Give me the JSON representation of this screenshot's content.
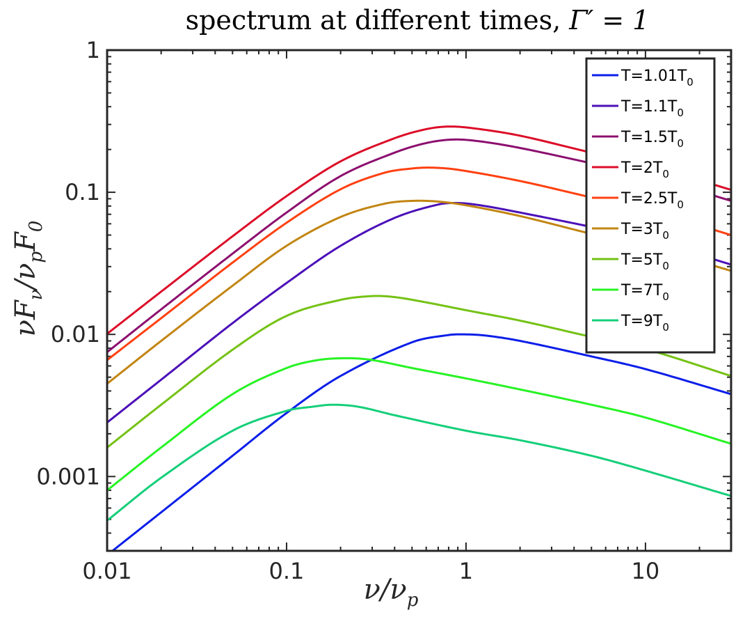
{
  "chart_data": {
    "type": "line",
    "title": "spectrum at different times, Γ′ = 1",
    "title_main": "spectrum at different times,",
    "title_math": "Γ′ = 1",
    "xlabel": "ν/ν",
    "xlabel_sub": "p",
    "ylabel": "νF",
    "ylabel_sub1": "ν",
    "ylabel_mid": "/ν",
    "ylabel_sub2": "p",
    "ylabel_end": "F",
    "ylabel_sub3": "0",
    "xscale": "log",
    "yscale": "log",
    "xlim": [
      0.01,
      30
    ],
    "ylim": [
      0.0003,
      1
    ],
    "x_ticks": [
      {
        "value": 0.01,
        "label": "0.01"
      },
      {
        "value": 0.1,
        "label": "0.1"
      },
      {
        "value": 1,
        "label": "1"
      },
      {
        "value": 10,
        "label": "10"
      }
    ],
    "y_ticks": [
      {
        "value": 0.001,
        "label": "0.001"
      },
      {
        "value": 0.01,
        "label": "0.01"
      },
      {
        "value": 0.1,
        "label": "0.1"
      },
      {
        "value": 1,
        "label": "1"
      }
    ],
    "legend_position": "top-right",
    "series": [
      {
        "name": "T=1.01T0",
        "label_main": "T=1.01T",
        "label_sub": "0",
        "color": "#0b1ee8",
        "x": [
          0.01,
          0.02,
          0.05,
          0.1,
          0.2,
          0.5,
          0.8,
          1,
          1.3,
          2,
          5,
          10,
          30
        ],
        "y": [
          0.00028,
          0.00056,
          0.0014,
          0.0028,
          0.0051,
          0.0088,
          0.0099,
          0.01,
          0.0098,
          0.009,
          0.007,
          0.0057,
          0.0038
        ]
      },
      {
        "name": "T=1.1T0",
        "label_main": "T=1.1T",
        "label_sub": "0",
        "color": "#4b10b8",
        "x": [
          0.01,
          0.02,
          0.05,
          0.1,
          0.2,
          0.4,
          0.7,
          0.9,
          1.2,
          2,
          5,
          10,
          30
        ],
        "y": [
          0.0024,
          0.0048,
          0.012,
          0.023,
          0.042,
          0.066,
          0.082,
          0.084,
          0.081,
          0.072,
          0.057,
          0.047,
          0.031
        ]
      },
      {
        "name": "T=1.5T0",
        "label_main": "T=1.5T",
        "label_sub": "0",
        "color": "#8c0f6f",
        "x": [
          0.01,
          0.02,
          0.05,
          0.1,
          0.2,
          0.4,
          0.6,
          0.85,
          1.2,
          2,
          5,
          10,
          30
        ],
        "y": [
          0.0075,
          0.015,
          0.037,
          0.072,
          0.13,
          0.19,
          0.222,
          0.235,
          0.228,
          0.205,
          0.16,
          0.132,
          0.087
        ]
      },
      {
        "name": "T=2T0",
        "label_main": "T=2T",
        "label_sub": "0",
        "color": "#dc0d28",
        "x": [
          0.01,
          0.02,
          0.05,
          0.1,
          0.2,
          0.4,
          0.6,
          0.8,
          1.1,
          2,
          5,
          10,
          30
        ],
        "y": [
          0.0101,
          0.02,
          0.049,
          0.094,
          0.165,
          0.24,
          0.278,
          0.29,
          0.282,
          0.25,
          0.19,
          0.157,
          0.104
        ]
      },
      {
        "name": "T=2.5T0",
        "label_main": "T=2.5T",
        "label_sub": "0",
        "color": "#ff4010",
        "x": [
          0.01,
          0.02,
          0.05,
          0.1,
          0.2,
          0.35,
          0.5,
          0.65,
          0.9,
          2,
          5,
          10,
          30
        ],
        "y": [
          0.0066,
          0.013,
          0.032,
          0.061,
          0.105,
          0.137,
          0.147,
          0.149,
          0.144,
          0.12,
          0.092,
          0.076,
          0.05
        ]
      },
      {
        "name": "T=3T0",
        "label_main": "T=3T",
        "label_sub": "0",
        "color": "#c28512",
        "x": [
          0.01,
          0.02,
          0.05,
          0.1,
          0.2,
          0.35,
          0.5,
          0.7,
          1,
          2,
          5,
          10,
          30
        ],
        "y": [
          0.0045,
          0.009,
          0.022,
          0.042,
          0.067,
          0.083,
          0.087,
          0.086,
          0.081,
          0.068,
          0.051,
          0.042,
          0.028
        ]
      },
      {
        "name": "T=5T0",
        "label_main": "T=5T",
        "label_sub": "0",
        "color": "#74c214",
        "x": [
          0.01,
          0.02,
          0.05,
          0.1,
          0.2,
          0.3,
          0.4,
          0.6,
          1,
          2,
          5,
          10,
          30
        ],
        "y": [
          0.0016,
          0.0032,
          0.0078,
          0.0135,
          0.0175,
          0.0186,
          0.0183,
          0.0168,
          0.0148,
          0.0125,
          0.0096,
          0.0079,
          0.0051
        ]
      },
      {
        "name": "T=7T0",
        "label_main": "T=7T",
        "label_sub": "0",
        "color": "#27f324",
        "x": [
          0.01,
          0.02,
          0.05,
          0.1,
          0.15,
          0.22,
          0.3,
          0.5,
          1,
          2,
          5,
          10,
          30
        ],
        "y": [
          0.0008,
          0.0016,
          0.0038,
          0.0058,
          0.0066,
          0.0068,
          0.0066,
          0.0058,
          0.0049,
          0.0041,
          0.0032,
          0.0026,
          0.0017
        ]
      },
      {
        "name": "T=9T0",
        "label_main": "T=9T",
        "label_sub": "0",
        "color": "#15cf79",
        "x": [
          0.01,
          0.02,
          0.05,
          0.1,
          0.14,
          0.18,
          0.25,
          0.4,
          1,
          2,
          5,
          10,
          30
        ],
        "y": [
          0.00049,
          0.00098,
          0.0021,
          0.0029,
          0.0031,
          0.0032,
          0.0031,
          0.0027,
          0.0021,
          0.0018,
          0.0014,
          0.0011,
          0.00073
        ]
      }
    ]
  }
}
